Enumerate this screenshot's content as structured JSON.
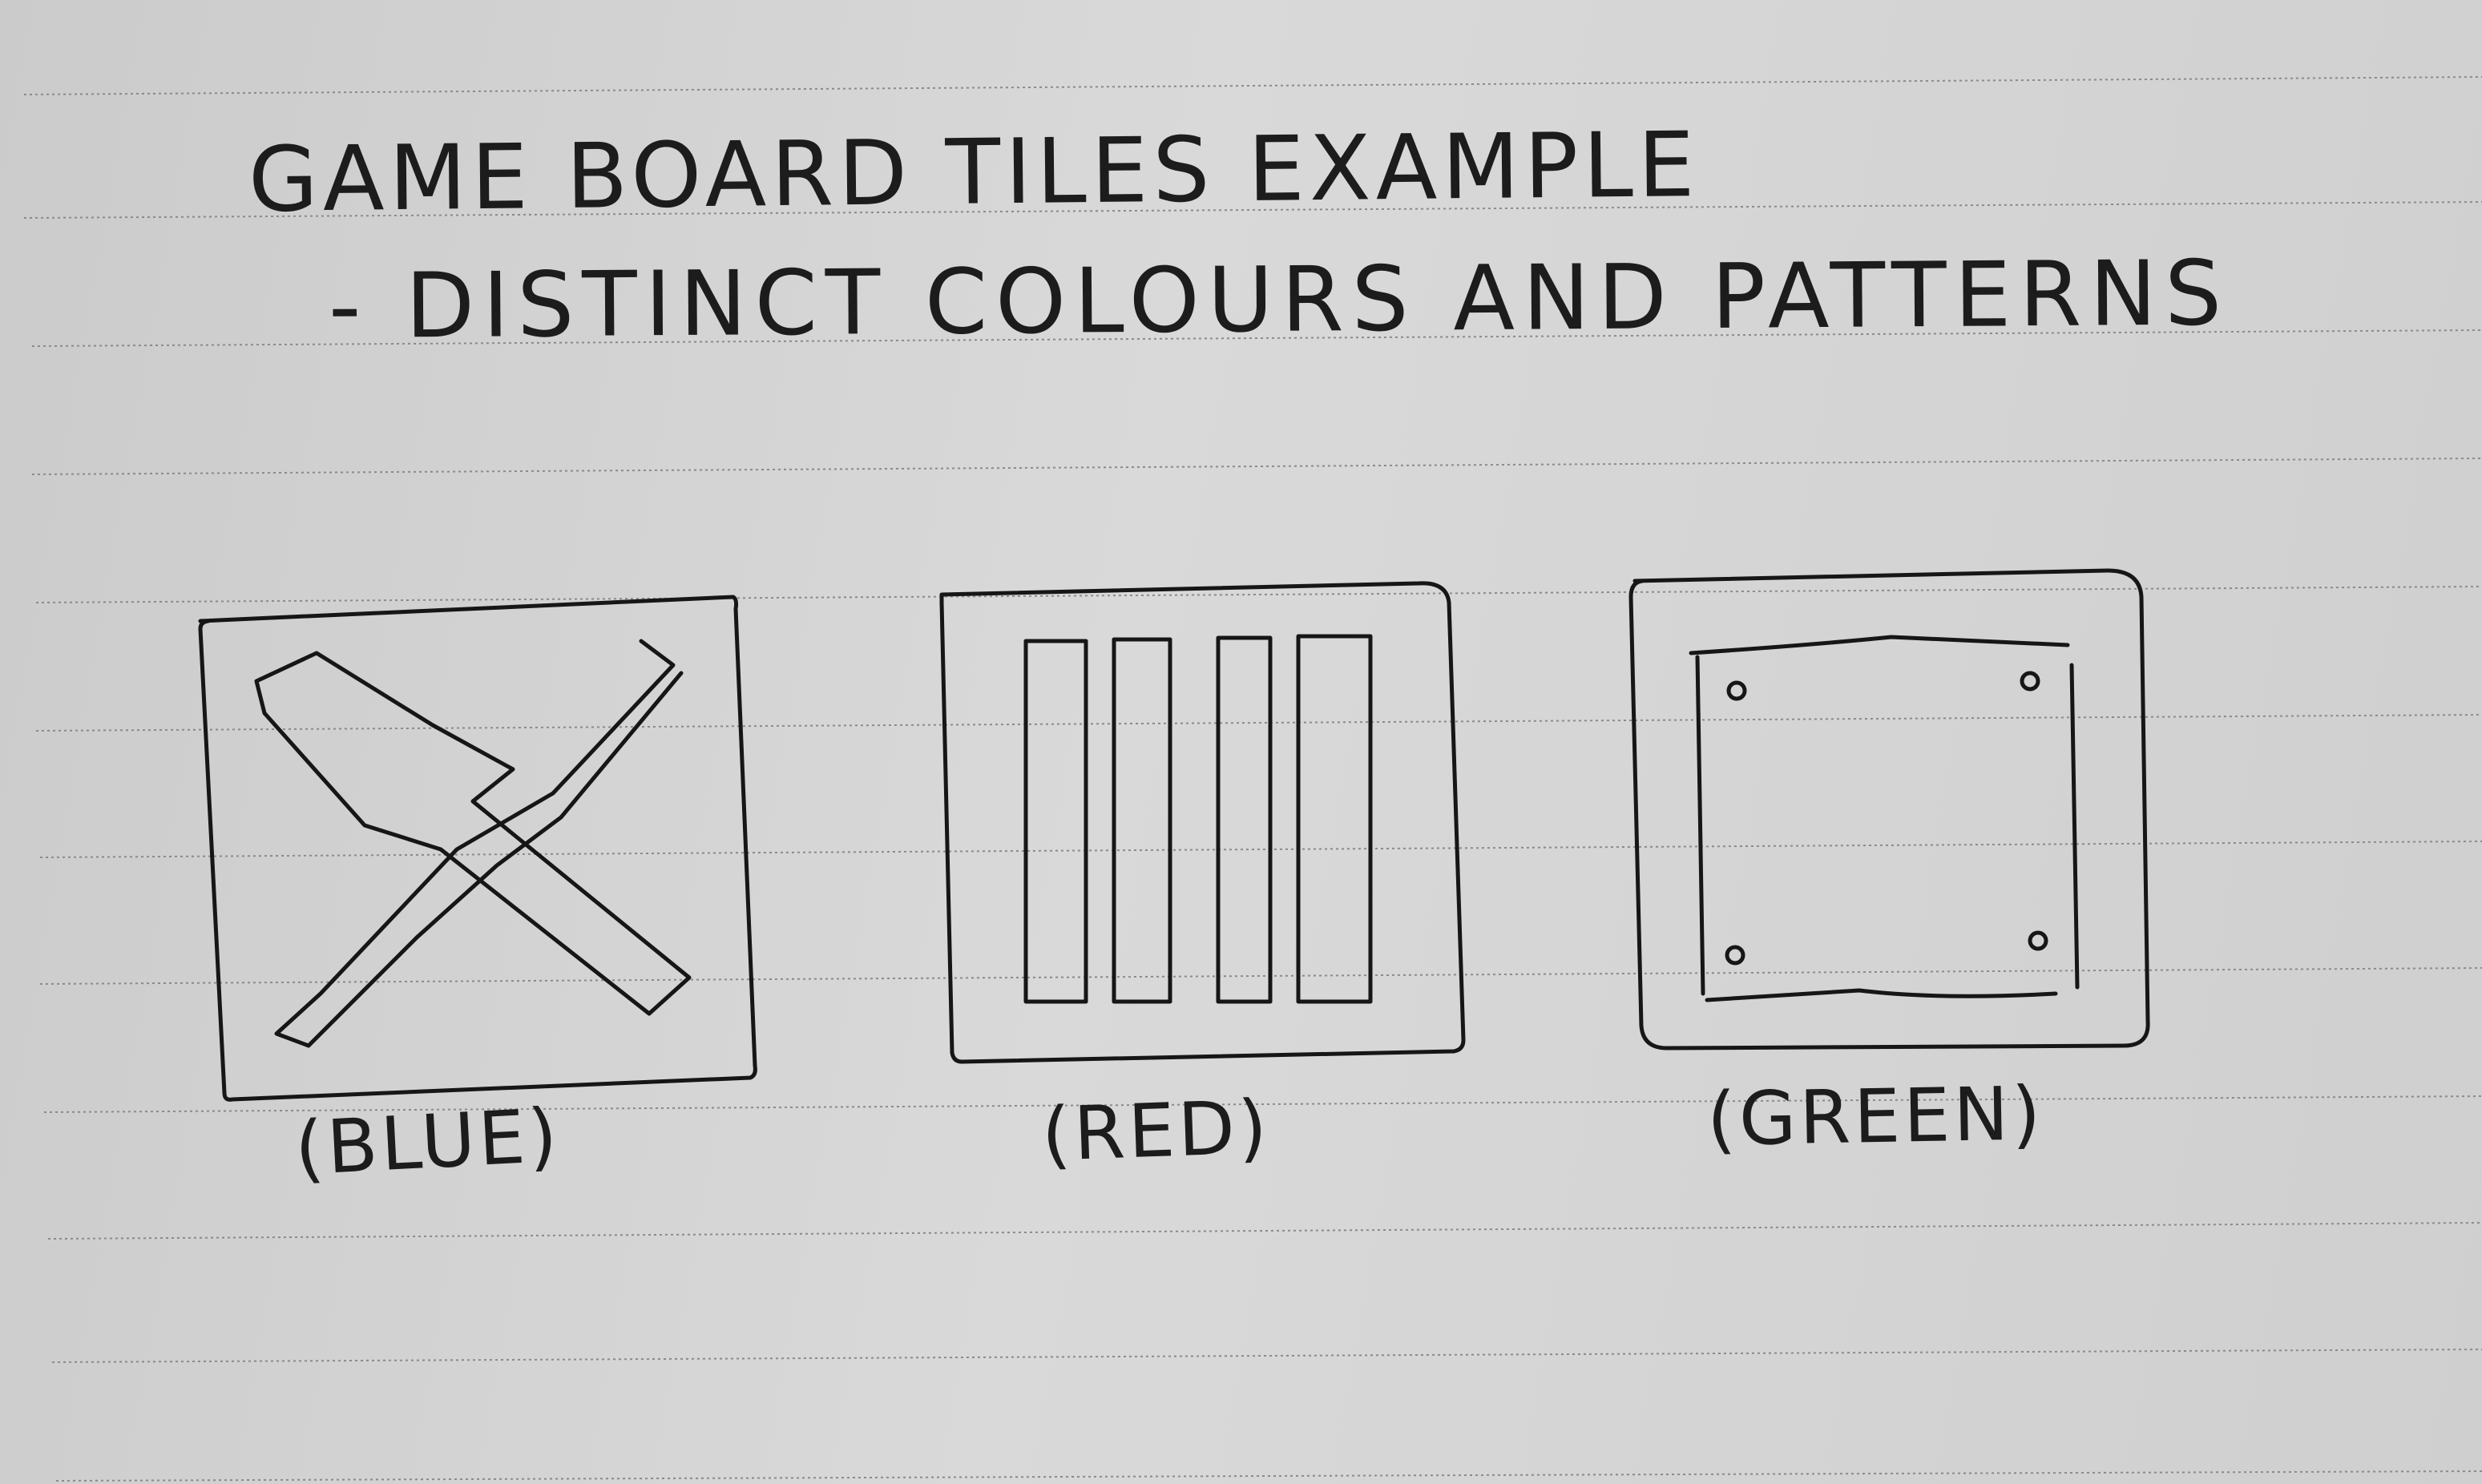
{
  "heading": {
    "title": "GAME BOARD TILES EXAMPLE",
    "subtitle": "- DISTINCT COLOURS AND PATTERNS"
  },
  "tiles": [
    {
      "pattern": "x-cross",
      "caption": "(BLUE)"
    },
    {
      "pattern": "vertical-stripes",
      "caption": "(RED)"
    },
    {
      "pattern": "plate-with-rivets",
      "caption": "(GREEN)"
    }
  ]
}
